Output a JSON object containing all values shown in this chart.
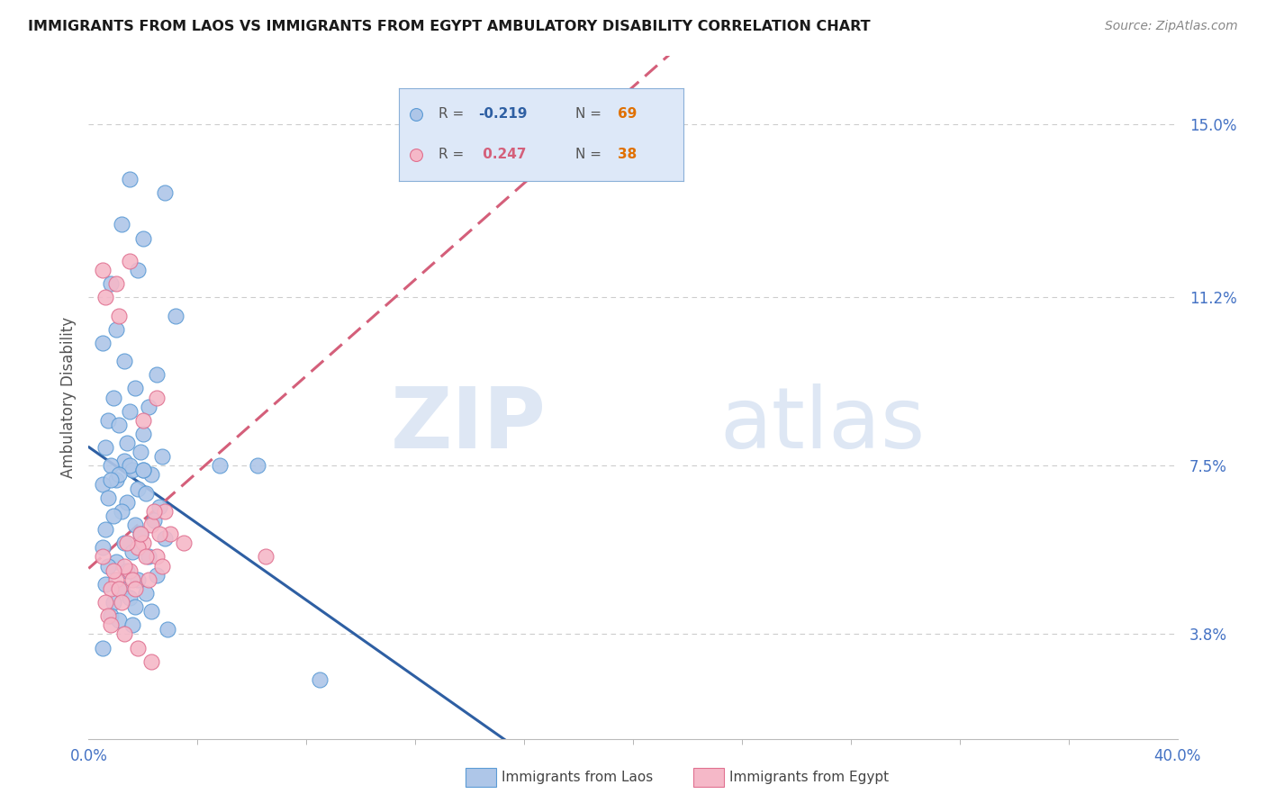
{
  "title": "IMMIGRANTS FROM LAOS VS IMMIGRANTS FROM EGYPT AMBULATORY DISABILITY CORRELATION CHART",
  "source": "Source: ZipAtlas.com",
  "ylabel": "Ambulatory Disability",
  "yticks": [
    3.8,
    7.5,
    11.2,
    15.0
  ],
  "ytick_labels": [
    "3.8%",
    "7.5%",
    "11.2%",
    "15.0%"
  ],
  "xtick_labels": [
    "0.0%",
    "40.0%"
  ],
  "xmin": 0.0,
  "xmax": 40.0,
  "ymin": 1.5,
  "ymax": 16.5,
  "laos_color": "#aec6e8",
  "laos_color_edge": "#5b9bd5",
  "egypt_color": "#f5b8c8",
  "egypt_color_edge": "#e07090",
  "laos_line_color": "#2e5fa3",
  "egypt_line_color": "#d45f7a",
  "legend_bg_color": "#dde8f8",
  "legend_border_color": "#8ab0d8",
  "laos_R": -0.219,
  "laos_N": 69,
  "egypt_R": 0.247,
  "egypt_N": 38,
  "watermark_zip": "ZIP",
  "watermark_atlas": "atlas",
  "laos_scatter_x": [
    1.5,
    2.8,
    1.2,
    2.0,
    0.8,
    1.8,
    3.2,
    1.0,
    0.5,
    1.3,
    2.5,
    1.7,
    0.9,
    2.2,
    1.5,
    0.7,
    1.1,
    2.0,
    1.4,
    0.6,
    1.9,
    2.7,
    1.3,
    0.8,
    1.6,
    2.3,
    1.0,
    0.5,
    1.8,
    2.1,
    0.7,
    1.4,
    2.6,
    1.2,
    0.9,
    2.4,
    1.7,
    0.6,
    1.5,
    2.0,
    1.1,
    0.8,
    1.9,
    2.8,
    1.3,
    0.5,
    1.6,
    2.2,
    1.0,
    0.7,
    1.4,
    2.5,
    1.8,
    0.6,
    1.2,
    2.1,
    1.5,
    0.9,
    1.7,
    2.3,
    0.8,
    1.1,
    1.6,
    2.9,
    0.5,
    4.8,
    8.5,
    6.2,
    2.0
  ],
  "laos_scatter_y": [
    13.8,
    13.5,
    12.8,
    12.5,
    11.5,
    11.8,
    10.8,
    10.5,
    10.2,
    9.8,
    9.5,
    9.2,
    9.0,
    8.8,
    8.7,
    8.5,
    8.4,
    8.2,
    8.0,
    7.9,
    7.8,
    7.7,
    7.6,
    7.5,
    7.4,
    7.3,
    7.2,
    7.1,
    7.0,
    6.9,
    6.8,
    6.7,
    6.6,
    6.5,
    6.4,
    6.3,
    6.2,
    6.1,
    7.5,
    7.4,
    7.3,
    7.2,
    6.0,
    5.9,
    5.8,
    5.7,
    5.6,
    5.5,
    5.4,
    5.3,
    5.2,
    5.1,
    5.0,
    4.9,
    4.8,
    4.7,
    4.6,
    4.5,
    4.4,
    4.3,
    4.2,
    4.1,
    4.0,
    3.9,
    3.5,
    7.5,
    2.8,
    7.5,
    7.4
  ],
  "egypt_scatter_x": [
    0.5,
    1.0,
    1.5,
    2.0,
    2.5,
    3.0,
    0.8,
    1.3,
    1.8,
    2.3,
    2.8,
    0.6,
    1.1,
    1.6,
    2.1,
    2.6,
    0.9,
    1.4,
    1.9,
    2.4,
    0.7,
    1.2,
    1.7,
    2.2,
    2.7,
    0.5,
    1.0,
    1.5,
    2.0,
    2.5,
    0.8,
    1.3,
    1.8,
    2.3,
    3.5,
    6.5,
    0.6,
    1.1
  ],
  "egypt_scatter_y": [
    5.5,
    5.0,
    5.2,
    5.8,
    5.5,
    6.0,
    4.8,
    5.3,
    5.7,
    6.2,
    6.5,
    4.5,
    4.8,
    5.0,
    5.5,
    6.0,
    5.2,
    5.8,
    6.0,
    6.5,
    4.2,
    4.5,
    4.8,
    5.0,
    5.3,
    11.8,
    11.5,
    12.0,
    8.5,
    9.0,
    4.0,
    3.8,
    3.5,
    3.2,
    5.8,
    5.5,
    11.2,
    10.8
  ]
}
